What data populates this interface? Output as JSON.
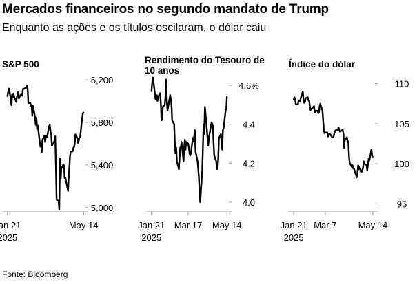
{
  "header": {
    "title": "Mercados financeiros no segundo mandato de Trump",
    "subtitle": "Enquanto as ações e os títulos oscilaram, o dólar caiu"
  },
  "footer": {
    "source": "Fonte: Bloomberg"
  },
  "colors": {
    "line": "#000000",
    "axis": "#999999",
    "text": "#000000",
    "background": "#ffffff"
  },
  "chart_data": [
    {
      "type": "line",
      "title": "S&P 500",
      "xlabel": "",
      "ylabel": "",
      "x_ticks": [
        {
          "date": "2025-01-21",
          "label": [
            "Jan 21",
            "2025"
          ]
        },
        {
          "date": "2025-05-14",
          "label": [
            "May 14"
          ]
        }
      ],
      "y_ticks": [
        {
          "value": 5000,
          "label": "5,000"
        },
        {
          "value": 5400,
          "label": "5,400"
        },
        {
          "value": 5800,
          "label": "5,800"
        },
        {
          "value": 6200,
          "label": "6,200"
        }
      ],
      "ylim": [
        4960,
        6240
      ],
      "xlim": [
        "2025-01-13",
        "2025-05-21"
      ],
      "grid": false,
      "axis_side": "right",
      "series": [
        {
          "x": [
            "2025-01-21",
            "2025-01-22",
            "2025-01-23",
            "2025-01-24",
            "2025-01-27",
            "2025-01-28",
            "2025-01-29",
            "2025-01-30",
            "2025-01-31",
            "2025-02-03",
            "2025-02-04",
            "2025-02-05",
            "2025-02-06",
            "2025-02-07",
            "2025-02-10",
            "2025-02-11",
            "2025-02-12",
            "2025-02-13",
            "2025-02-14",
            "2025-02-18",
            "2025-02-19",
            "2025-02-20",
            "2025-02-21",
            "2025-02-24",
            "2025-02-25",
            "2025-02-26",
            "2025-02-27",
            "2025-02-28",
            "2025-03-03",
            "2025-03-04",
            "2025-03-05",
            "2025-03-06",
            "2025-03-07",
            "2025-03-10",
            "2025-03-11",
            "2025-03-12",
            "2025-03-13",
            "2025-03-14",
            "2025-03-17",
            "2025-03-18",
            "2025-03-19",
            "2025-03-20",
            "2025-03-21",
            "2025-03-24",
            "2025-03-25",
            "2025-03-26",
            "2025-03-27",
            "2025-03-28",
            "2025-03-31",
            "2025-04-01",
            "2025-04-02",
            "2025-04-03",
            "2025-04-04",
            "2025-04-07",
            "2025-04-08",
            "2025-04-09",
            "2025-04-10",
            "2025-04-11",
            "2025-04-14",
            "2025-04-15",
            "2025-04-16",
            "2025-04-17",
            "2025-04-21",
            "2025-04-22",
            "2025-04-23",
            "2025-04-24",
            "2025-04-25",
            "2025-04-28",
            "2025-04-29",
            "2025-04-30",
            "2025-05-01",
            "2025-05-02",
            "2025-05-05",
            "2025-05-06",
            "2025-05-07",
            "2025-05-08",
            "2025-05-09",
            "2025-05-12",
            "2025-05-13",
            "2025-05-14"
          ],
          "values": [
            6049,
            6086,
            6119,
            6101,
            5962,
            6067,
            6039,
            6071,
            6041,
            5994,
            6038,
            6061,
            6084,
            6026,
            6066,
            6068,
            6052,
            6115,
            6115,
            6129,
            6144,
            6117,
            5983,
            5983,
            5955,
            5956,
            5862,
            5955,
            5850,
            5778,
            5843,
            5739,
            5770,
            5615,
            5572,
            5599,
            5522,
            5639,
            5675,
            5615,
            5675,
            5663,
            5667,
            5768,
            5777,
            5712,
            5693,
            5581,
            5612,
            5633,
            5671,
            5397,
            5074,
            5062,
            4982,
            5457,
            5268,
            5363,
            5406,
            5397,
            5276,
            5283,
            5158,
            5288,
            5376,
            5485,
            5525,
            5529,
            5561,
            5569,
            5604,
            5687,
            5650,
            5607,
            5631,
            5664,
            5660,
            5844,
            5886,
            5892
          ]
        }
      ]
    },
    {
      "type": "line",
      "title": "Rendimento do Tesouro de 10 anos",
      "xlabel": "",
      "ylabel": "",
      "x_ticks": [
        {
          "date": "2025-01-21",
          "label": [
            "Jan 21",
            "2025"
          ]
        },
        {
          "date": "2025-03-17",
          "label": [
            "Mar 17"
          ]
        },
        {
          "date": "2025-05-14",
          "label": [
            "May 14"
          ]
        }
      ],
      "y_ticks": [
        {
          "value": 4.0,
          "label": "4.0"
        },
        {
          "value": 4.2,
          "label": "4.2"
        },
        {
          "value": 4.4,
          "label": "4.4"
        },
        {
          "value": 4.6,
          "label": "4.6%"
        }
      ],
      "ylim": [
        3.95,
        4.65
      ],
      "xlim": [
        "2025-01-13",
        "2025-05-21"
      ],
      "grid": false,
      "axis_side": "right",
      "series": [
        {
          "x": [
            "2025-01-21",
            "2025-01-22",
            "2025-01-23",
            "2025-01-24",
            "2025-01-27",
            "2025-01-28",
            "2025-01-29",
            "2025-01-30",
            "2025-01-31",
            "2025-02-03",
            "2025-02-04",
            "2025-02-05",
            "2025-02-06",
            "2025-02-07",
            "2025-02-10",
            "2025-02-11",
            "2025-02-12",
            "2025-02-13",
            "2025-02-14",
            "2025-02-18",
            "2025-02-19",
            "2025-02-20",
            "2025-02-21",
            "2025-02-24",
            "2025-02-25",
            "2025-02-26",
            "2025-02-27",
            "2025-02-28",
            "2025-03-03",
            "2025-03-04",
            "2025-03-05",
            "2025-03-06",
            "2025-03-07",
            "2025-03-10",
            "2025-03-11",
            "2025-03-12",
            "2025-03-13",
            "2025-03-14",
            "2025-03-17",
            "2025-03-18",
            "2025-03-19",
            "2025-03-20",
            "2025-03-21",
            "2025-03-24",
            "2025-03-25",
            "2025-03-26",
            "2025-03-27",
            "2025-03-28",
            "2025-03-31",
            "2025-04-01",
            "2025-04-02",
            "2025-04-03",
            "2025-04-04",
            "2025-04-07",
            "2025-04-08",
            "2025-04-09",
            "2025-04-10",
            "2025-04-11",
            "2025-04-14",
            "2025-04-15",
            "2025-04-16",
            "2025-04-17",
            "2025-04-21",
            "2025-04-22",
            "2025-04-23",
            "2025-04-24",
            "2025-04-25",
            "2025-04-28",
            "2025-04-29",
            "2025-04-30",
            "2025-05-01",
            "2025-05-02",
            "2025-05-05",
            "2025-05-06",
            "2025-05-07",
            "2025-05-08",
            "2025-05-09",
            "2025-05-12",
            "2025-05-13",
            "2025-05-14"
          ],
          "values": [
            4.57,
            4.61,
            4.64,
            4.62,
            4.53,
            4.54,
            4.55,
            4.52,
            4.54,
            4.56,
            4.51,
            4.42,
            4.43,
            4.49,
            4.5,
            4.54,
            4.63,
            4.53,
            4.47,
            4.55,
            4.53,
            4.5,
            4.42,
            4.4,
            4.3,
            4.25,
            4.28,
            4.21,
            4.17,
            4.22,
            4.28,
            4.28,
            4.31,
            4.21,
            4.28,
            4.32,
            4.27,
            4.31,
            4.3,
            4.28,
            4.25,
            4.24,
            4.25,
            4.33,
            4.31,
            4.34,
            4.37,
            4.26,
            4.21,
            4.17,
            4.13,
            4.06,
            4.0,
            4.16,
            4.27,
            4.4,
            4.35,
            4.49,
            4.37,
            4.33,
            4.29,
            4.33,
            4.41,
            4.4,
            4.39,
            4.31,
            4.24,
            4.21,
            4.17,
            4.17,
            4.22,
            4.33,
            4.35,
            4.3,
            4.27,
            4.37,
            4.38,
            4.47,
            4.48,
            4.54
          ]
        }
      ]
    },
    {
      "type": "line",
      "title": "Índice do dólar",
      "xlabel": "",
      "ylabel": "",
      "x_ticks": [
        {
          "date": "2025-01-21",
          "label": [
            "Jan 21",
            "2025"
          ]
        },
        {
          "date": "2025-03-07",
          "label": [
            "Mar 7"
          ]
        },
        {
          "date": "2025-05-14",
          "label": [
            "May 14"
          ]
        }
      ],
      "y_ticks": [
        {
          "value": 95,
          "label": "95"
        },
        {
          "value": 100,
          "label": "100"
        },
        {
          "value": 105,
          "label": "105"
        },
        {
          "value": 110,
          "label": "110"
        }
      ],
      "ylim": [
        94,
        111
      ],
      "xlim": [
        "2025-01-13",
        "2025-05-21"
      ],
      "grid": false,
      "axis_side": "right",
      "series": [
        {
          "x": [
            "2025-01-21",
            "2025-01-22",
            "2025-01-23",
            "2025-01-24",
            "2025-01-27",
            "2025-01-28",
            "2025-01-29",
            "2025-01-30",
            "2025-01-31",
            "2025-02-03",
            "2025-02-04",
            "2025-02-05",
            "2025-02-06",
            "2025-02-07",
            "2025-02-10",
            "2025-02-11",
            "2025-02-12",
            "2025-02-13",
            "2025-02-14",
            "2025-02-18",
            "2025-02-19",
            "2025-02-20",
            "2025-02-21",
            "2025-02-24",
            "2025-02-25",
            "2025-02-26",
            "2025-02-27",
            "2025-02-28",
            "2025-03-03",
            "2025-03-04",
            "2025-03-05",
            "2025-03-06",
            "2025-03-07",
            "2025-03-10",
            "2025-03-11",
            "2025-03-12",
            "2025-03-13",
            "2025-03-14",
            "2025-03-17",
            "2025-03-18",
            "2025-03-19",
            "2025-03-20",
            "2025-03-21",
            "2025-03-24",
            "2025-03-25",
            "2025-03-26",
            "2025-03-27",
            "2025-03-28",
            "2025-03-31",
            "2025-04-01",
            "2025-04-02",
            "2025-04-03",
            "2025-04-04",
            "2025-04-07",
            "2025-04-08",
            "2025-04-09",
            "2025-04-10",
            "2025-04-11",
            "2025-04-14",
            "2025-04-15",
            "2025-04-16",
            "2025-04-17",
            "2025-04-21",
            "2025-04-22",
            "2025-04-23",
            "2025-04-24",
            "2025-04-25",
            "2025-04-28",
            "2025-04-29",
            "2025-04-30",
            "2025-05-01",
            "2025-05-02",
            "2025-05-05",
            "2025-05-06",
            "2025-05-07",
            "2025-05-08",
            "2025-05-09",
            "2025-05-12",
            "2025-05-13",
            "2025-05-14"
          ],
          "values": [
            108.0,
            108.3,
            108.1,
            107.4,
            107.4,
            107.9,
            107.9,
            107.8,
            108.2,
            109.0,
            108.0,
            107.6,
            107.7,
            108.2,
            108.3,
            107.9,
            107.9,
            107.2,
            106.7,
            107.1,
            107.2,
            106.4,
            106.6,
            106.6,
            106.3,
            106.4,
            107.2,
            107.5,
            106.6,
            105.5,
            104.2,
            103.8,
            103.9,
            103.9,
            103.4,
            103.5,
            103.8,
            103.7,
            103.3,
            103.3,
            103.4,
            103.8,
            104.1,
            104.3,
            104.2,
            104.5,
            104.3,
            104.0,
            104.2,
            104.2,
            103.8,
            102.0,
            103.0,
            103.3,
            102.7,
            102.8,
            100.8,
            100.1,
            99.6,
            99.8,
            99.4,
            99.4,
            98.3,
            98.9,
            99.8,
            99.3,
            99.6,
            99.0,
            99.2,
            99.5,
            100.3,
            100.0,
            99.8,
            99.2,
            99.9,
            100.6,
            100.4,
            101.8,
            101.0,
            100.8
          ]
        }
      ]
    }
  ]
}
